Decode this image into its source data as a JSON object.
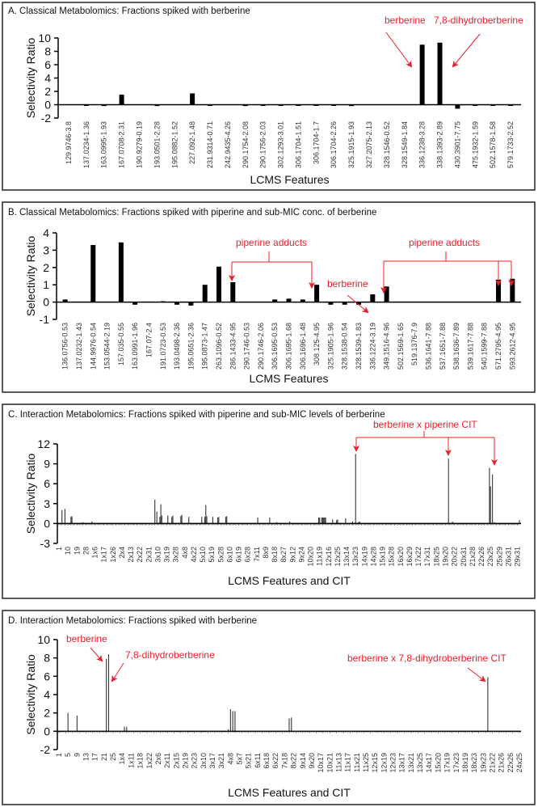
{
  "chart_data": [
    {
      "type": "bar",
      "title": "A. Classical Metabolomics:  Fractions spiked with berberine",
      "xlabel": "LCMS Features",
      "ylabel": "Selectivity Ratio",
      "ylim": [
        -2,
        10
      ],
      "yticks": [
        10,
        8,
        6,
        4,
        2,
        0,
        -2
      ],
      "categories": [
        "129.9746-3.8",
        "137.0234-1.36",
        "163.0995-1.93",
        "167.0708-2.31",
        "190.9279-0.19",
        "193.0501-2.28",
        "195.0882-1.52",
        "227.092-1.48",
        "231.9314-0.71",
        "242.9435-4.26",
        "290.1754-2.08",
        "290.1756-2.03",
        "302.1293-3.01",
        "306.1704-1.51",
        "306.1704-1.7",
        "306.1704-2.26",
        "325.1915-1.93",
        "327.2075-2.13",
        "328.1546-0.52",
        "328.1549-1.84",
        "336.1238-3.28",
        "338.1393-2.89",
        "430.3901-7.75",
        "475.1932-1.59",
        "502.1578-1.58",
        "579.1733-2.52"
      ],
      "values": [
        0,
        -0.1,
        -0.2,
        1.5,
        0,
        -0.2,
        0,
        1.7,
        -0.05,
        0,
        -0.2,
        -0.1,
        -0.1,
        -0.1,
        -0.1,
        -0.1,
        -0.2,
        0,
        0,
        0,
        9.0,
        9.3,
        -0.6,
        -0.1,
        -0.1,
        -0.1
      ],
      "annotations": [
        "berberine",
        "7,8-dihydroberberine"
      ]
    },
    {
      "type": "bar",
      "title": "B. Classical Metabolomics:  Fractions spiked with piperine and sub-MIC conc. of berberine",
      "xlabel": "LCMS Features",
      "ylabel": "Selectivity Ratio",
      "ylim": [
        -1,
        4
      ],
      "yticks": [
        4,
        3,
        2,
        1,
        0,
        -1
      ],
      "categories": [
        "136.0756-0.53",
        "137.0232-1.43",
        "144.9976-0.54",
        "153.0544-2.19",
        "157.035-0.55",
        "163.0991-1.96",
        "167.07-2.4",
        "191.0723-0.53",
        "193.0498-2.36",
        "195.0651-2.36",
        "195.0873-1.47",
        "263.1096-0.52",
        "286.1433-4.95",
        "290.1746-0.53",
        "290.1746-2.06",
        "306.1695-0.53",
        "306.1695-1.68",
        "306.1696-1.48",
        "308.125-4.95",
        "325.1905-1.96",
        "328.1538-0.54",
        "328.1539-1.83",
        "336.1224-3.19",
        "349.1516-4.96",
        "502.1569-1.65",
        "519.1376-7.9",
        "536.1641-7.88",
        "537.1651-7.88",
        "538.1636-7.89",
        "539.1617-7.88",
        "540.1599-7.88",
        "571.2795-4.95",
        "593.2612-4.95"
      ],
      "values": [
        0.15,
        0,
        3.3,
        0,
        3.45,
        -0.15,
        0,
        0.05,
        -0.15,
        -0.2,
        1.0,
        2.05,
        1.15,
        0,
        0,
        0.15,
        0.2,
        0.15,
        1.0,
        -0.15,
        -0.15,
        -0.15,
        0.45,
        0.9,
        0,
        0,
        0,
        0,
        0,
        0,
        0,
        1.3,
        1.35
      ],
      "annotations": [
        "piperine adducts",
        "piperine adducts",
        "berberine"
      ]
    },
    {
      "type": "bar",
      "title": "C. Interaction Metabolomics:  Fractions spiked with piperine and sub-MIC levels  of berberine",
      "xlabel": "LCMS Features and CIT",
      "ylabel": "Selectivity Ratio",
      "ylim": [
        -3,
        12
      ],
      "yticks": [
        12,
        9,
        6,
        3,
        0,
        -3
      ],
      "feature_count": 462,
      "tick_step": 9,
      "tick_labels": [
        "1",
        "10",
        "19",
        "28",
        "1x6",
        "1x17",
        "1x26",
        "2x4",
        "2x13",
        "2x22",
        "2x31",
        "3x10",
        "3x19",
        "3x28",
        "4x8",
        "4x22",
        "5x10",
        "5x19",
        "5x28",
        "6x10",
        "6x19",
        "6x28",
        "7x11",
        "8x9",
        "8x18",
        "8x27",
        "9x12",
        "9x24",
        "10x20",
        "11x19",
        "12x16",
        "12x25",
        "13x14",
        "13x23",
        "14x19",
        "14x28",
        "15x19",
        "15x28",
        "16x20",
        "16x29",
        "17x22",
        "17x31",
        "18x25",
        "19x20",
        "20x22",
        "20x31",
        "21x28",
        "22x26",
        "23x25",
        "25x29",
        "26x31",
        "29x31"
      ],
      "points": [
        [
          3,
          2.0
        ],
        [
          6,
          2.2
        ],
        [
          12,
          1.0
        ],
        [
          13,
          1.1
        ],
        [
          24,
          0.2
        ],
        [
          33,
          0.3
        ],
        [
          96,
          3.6
        ],
        [
          98,
          1.8
        ],
        [
          101,
          1.0
        ],
        [
          102,
          2.9
        ],
        [
          103,
          1.2
        ],
        [
          109,
          1.2
        ],
        [
          113,
          1.0
        ],
        [
          114,
          1.2
        ],
        [
          122,
          1.1
        ],
        [
          123,
          1.3
        ],
        [
          130,
          1.0
        ],
        [
          143,
          1.0
        ],
        [
          146,
          1.0
        ],
        [
          147,
          2.8
        ],
        [
          148,
          1.1
        ],
        [
          154,
          1.0
        ],
        [
          159,
          0.9
        ],
        [
          160,
          1.0
        ],
        [
          167,
          1.0
        ],
        [
          168,
          1.1
        ],
        [
          199,
          0.9
        ],
        [
          211,
          0.9
        ],
        [
          218,
          0.2
        ],
        [
          231,
          0.3
        ],
        [
          260,
          0.9
        ],
        [
          261,
          0.9
        ],
        [
          263,
          0.9
        ],
        [
          264,
          0.9
        ],
        [
          265,
          0.9
        ],
        [
          266,
          0.9
        ],
        [
          267,
          0.9
        ],
        [
          274,
          0.6
        ],
        [
          278,
          0.5
        ],
        [
          279,
          0.6
        ],
        [
          287,
          0.8
        ],
        [
          294,
          0.3
        ],
        [
          297,
          10.5
        ],
        [
          300,
          0.2
        ],
        [
          301,
          0.3
        ],
        [
          390,
          9.8
        ],
        [
          394,
          0.3
        ],
        [
          431,
          8.4
        ],
        [
          432,
          5.6
        ],
        [
          434,
          7.4
        ],
        [
          436,
          0.2
        ],
        [
          461,
          0.5
        ]
      ],
      "annotations": [
        "berberine x piperine CIT"
      ]
    },
    {
      "type": "bar",
      "title": "D. Interaction Metabolomics:  Fractions spiked with berberine",
      "xlabel": "LCMS Features and CIT",
      "ylabel": "Selectivity Ratio",
      "ylim": [
        -2,
        10
      ],
      "yticks": [
        10,
        8,
        6,
        4,
        2,
        0,
        -2
      ],
      "feature_count": 205,
      "tick_step": 4,
      "tick_labels": [
        "1",
        "5",
        "9",
        "13",
        "17",
        "21",
        "25",
        "1x4",
        "1x11",
        "1x18",
        "1x22",
        "2x6",
        "2x11",
        "2x15",
        "2x19",
        "2x23",
        "3x10",
        "3x17",
        "3x21",
        "4x8",
        "5x7",
        "5x21",
        "6x11",
        "6x18",
        "6x22",
        "7x18",
        "8x22",
        "9x14",
        "9x20",
        "10x17",
        "10x21",
        "11x13",
        "11x17",
        "11x21",
        "11x25",
        "12x15",
        "12x19",
        "12x23",
        "13x17",
        "13x21",
        "13x25",
        "14x17",
        "15x20",
        "17x19",
        "17x23",
        "18x19",
        "18x23",
        "19x23",
        "21x22",
        "21x26",
        "22x26",
        "24x25"
      ],
      "points": [
        [
          4,
          2.0
        ],
        [
          8,
          1.7
        ],
        [
          21,
          7.9
        ],
        [
          22,
          8.4
        ],
        [
          29,
          0.5
        ],
        [
          30,
          0.5
        ],
        [
          75,
          0.2
        ],
        [
          76,
          2.4
        ],
        [
          77,
          2.2
        ],
        [
          78,
          2.2
        ],
        [
          102,
          1.4
        ],
        [
          103,
          1.5
        ],
        [
          190,
          5.9
        ]
      ],
      "annotations": [
        "berberine",
        "7,8-dihydroberberine",
        "berberine x 7,8-dihydroberberine CIT"
      ]
    }
  ],
  "colors": {
    "bar": "#000000",
    "spike": "#333333",
    "annotation": "#e8202a",
    "axis": "#000000"
  }
}
